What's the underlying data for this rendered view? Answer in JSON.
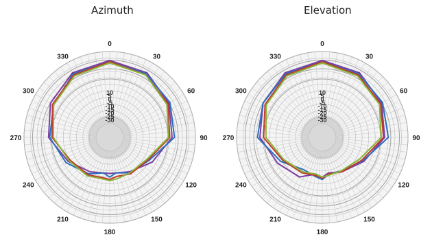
{
  "chart_data": [
    {
      "type": "polar",
      "title": "Azimuth",
      "radial_ticks": [
        "10",
        "5",
        "0",
        "-5",
        "-10",
        "-15",
        "-20",
        "-25",
        "-30"
      ],
      "radial_range": [
        -35,
        10
      ],
      "angle_labels": [
        "0",
        "30",
        "60",
        "90",
        "120",
        "150",
        "180",
        "210",
        "240",
        "270",
        "300",
        "330"
      ],
      "grid": true,
      "series": [
        {
          "color": "#7b3fa0",
          "angles": [
            0,
            30,
            60,
            90,
            120,
            150,
            170,
            180,
            190,
            210,
            240,
            270,
            300,
            330,
            360
          ],
          "values": [
            9,
            7,
            2,
            -3,
            -14,
            -22,
            -25,
            -25,
            -25,
            -22,
            -15,
            -4,
            2,
            7,
            9
          ]
        },
        {
          "color": "#2d6fbf",
          "angles": [
            0,
            30,
            60,
            90,
            120,
            150,
            170,
            180,
            190,
            210,
            240,
            270,
            300,
            330,
            360
          ],
          "values": [
            8,
            6,
            3,
            -1,
            -17,
            -21,
            -25,
            -22,
            -25,
            -20,
            -13,
            -5,
            -1,
            6,
            8
          ]
        },
        {
          "color": "#c0392b",
          "angles": [
            0,
            30,
            60,
            90,
            120,
            150,
            170,
            180,
            190,
            210,
            240,
            270,
            300,
            330,
            360
          ],
          "values": [
            8,
            5,
            1,
            -5,
            -18,
            -20,
            -22,
            -20,
            -21,
            -19,
            -17,
            -7,
            0,
            5,
            8
          ]
        },
        {
          "color": "#8bb43a",
          "angles": [
            0,
            30,
            60,
            90,
            120,
            150,
            170,
            180,
            190,
            210,
            240,
            270,
            300,
            330,
            360
          ],
          "values": [
            7,
            5,
            0,
            -6,
            -19,
            -21,
            -20,
            -19,
            -20,
            -18,
            -16,
            -8,
            -1,
            4,
            7
          ]
        }
      ]
    },
    {
      "type": "polar",
      "title": "Elevation",
      "radial_ticks": [
        "10",
        "5",
        "0",
        "-5",
        "-10",
        "-15",
        "-20",
        "-25",
        "-30"
      ],
      "radial_range": [
        -35,
        10
      ],
      "angle_labels": [
        "0",
        "30",
        "60",
        "90",
        "120",
        "150",
        "180",
        "210",
        "240",
        "270",
        "300",
        "330"
      ],
      "grid": true,
      "series": [
        {
          "color": "#7b3fa0",
          "angles": [
            0,
            30,
            60,
            90,
            120,
            150,
            170,
            180,
            190,
            210,
            240,
            270,
            300,
            330,
            360
          ],
          "values": [
            9,
            7,
            2,
            -3,
            -15,
            -22,
            -25,
            -22,
            -24,
            -17,
            -12,
            -3,
            2,
            7,
            9
          ]
        },
        {
          "color": "#2d6fbf",
          "angles": [
            0,
            30,
            60,
            90,
            120,
            150,
            170,
            180,
            190,
            210,
            240,
            270,
            300,
            330,
            360
          ],
          "values": [
            8,
            6,
            3,
            0,
            -16,
            -23,
            -24,
            -20,
            -22,
            -24,
            -15,
            -1,
            2,
            6,
            8
          ]
        },
        {
          "color": "#c0392b",
          "angles": [
            0,
            30,
            60,
            90,
            120,
            150,
            170,
            180,
            190,
            210,
            240,
            270,
            300,
            330,
            360
          ],
          "values": [
            8,
            5,
            1,
            -4,
            -17,
            -22,
            -24,
            -21,
            -23,
            -21,
            -17,
            -6,
            0,
            5,
            8
          ]
        },
        {
          "color": "#8bb43a",
          "angles": [
            0,
            30,
            60,
            90,
            120,
            150,
            170,
            180,
            190,
            210,
            240,
            270,
            300,
            330,
            360
          ],
          "values": [
            7,
            4,
            0,
            -6,
            -19,
            -23,
            -23,
            -22,
            -24,
            -22,
            -18,
            -8,
            -1,
            4,
            7
          ]
        }
      ]
    }
  ]
}
